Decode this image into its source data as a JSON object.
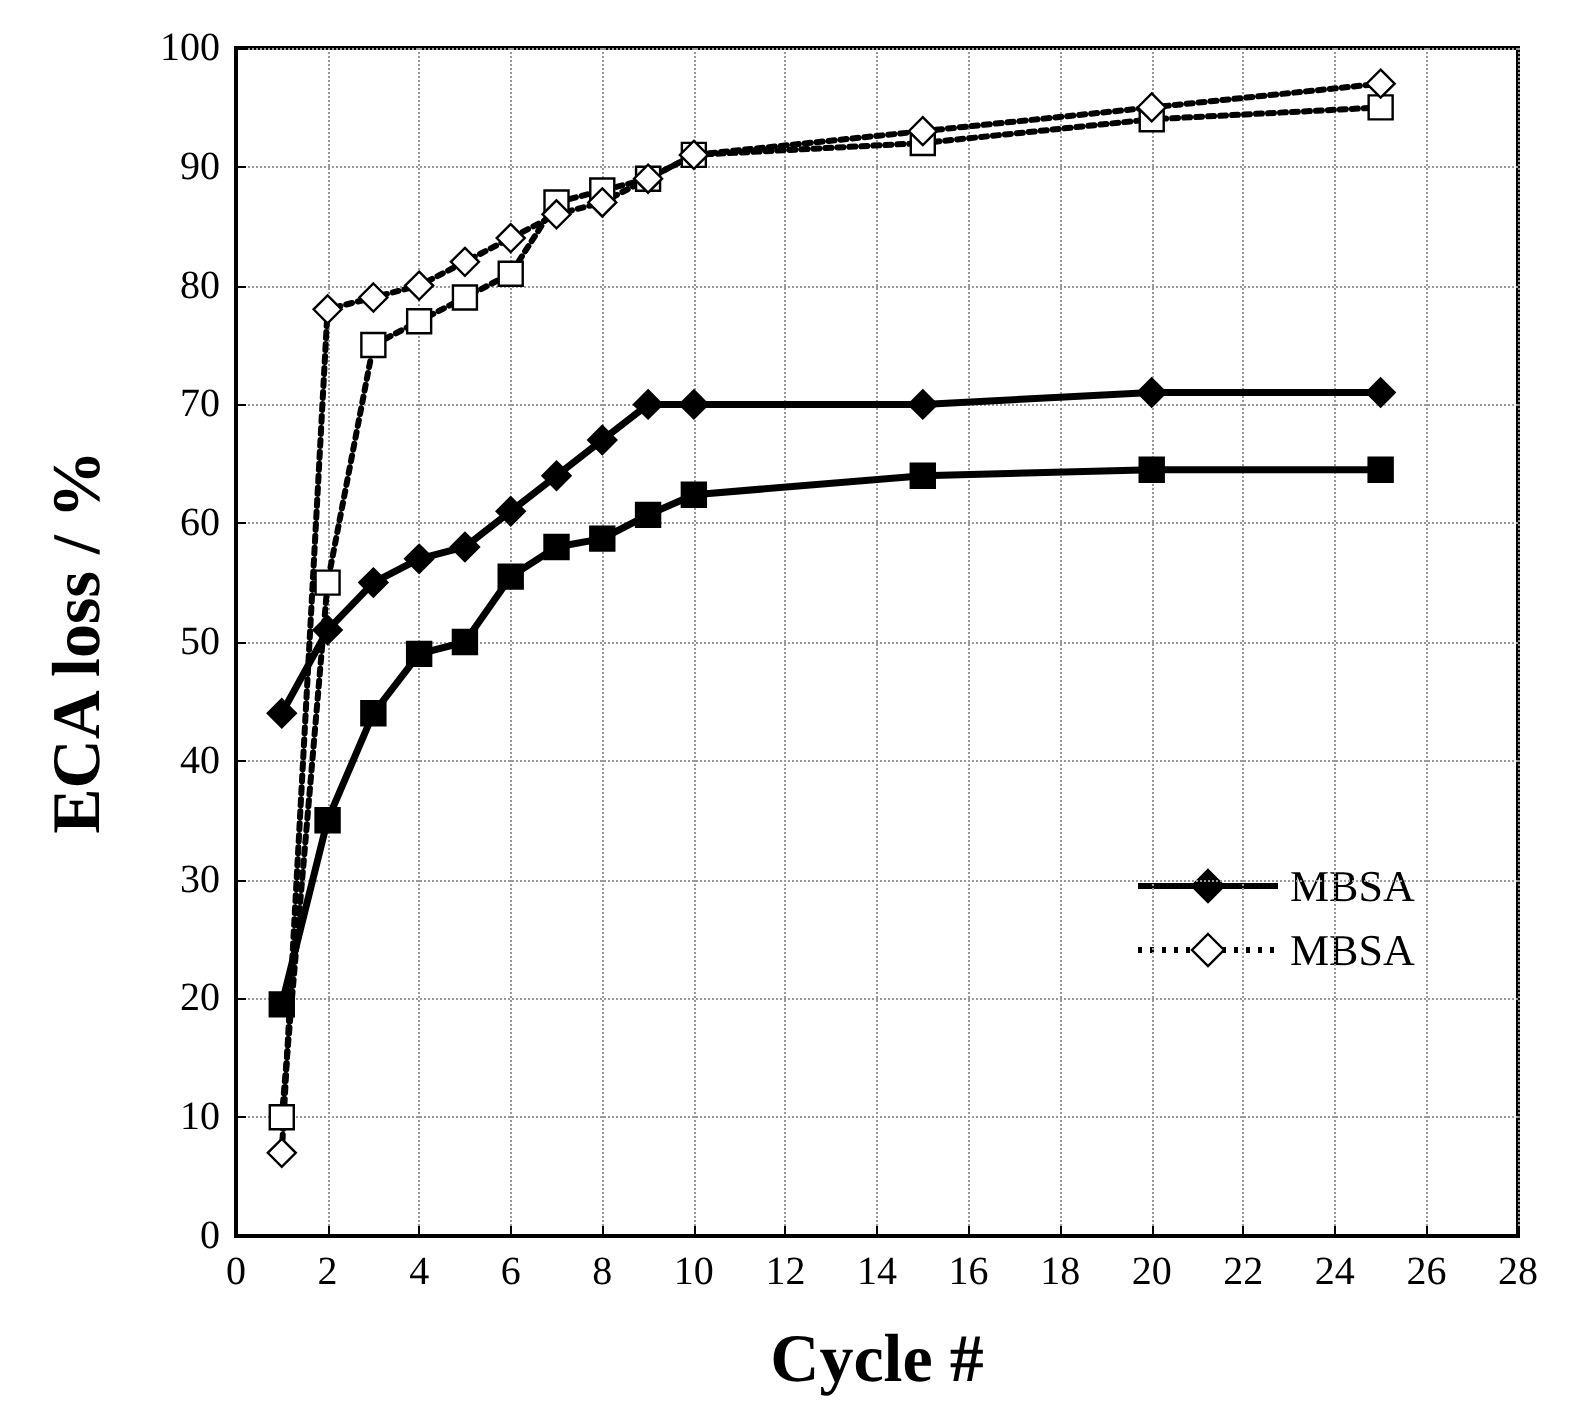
{
  "chart_data": {
    "type": "line",
    "xlabel": "Cycle #",
    "ylabel": "ECA loss / %",
    "x": [
      1,
      2,
      3,
      4,
      5,
      6,
      7,
      8,
      9,
      10,
      15,
      20,
      25
    ],
    "series": [
      {
        "color": "#000000",
        "marker": "square",
        "line_style": "solid",
        "values": [
          19.5,
          35,
          44,
          49,
          50,
          55.5,
          58,
          58.7,
          60.7,
          62.4,
          64,
          64.5,
          64.5
        ]
      },
      {
        "name": "MBSA",
        "color": "#000000",
        "marker": "diamond",
        "line_style": "solid",
        "values": [
          44,
          51,
          55,
          57,
          58,
          61,
          64,
          67,
          70,
          70,
          70,
          71,
          71
        ]
      },
      {
        "color": "#000000",
        "marker": "square",
        "line_style": "dotted",
        "values": [
          10,
          55,
          75,
          77,
          79,
          81,
          87,
          88,
          89,
          91,
          92,
          94,
          95
        ]
      },
      {
        "name": "MBSA",
        "color": "#000000",
        "marker": "diamond",
        "line_style": "dotted",
        "values": [
          7,
          78,
          79,
          80,
          82,
          84,
          86,
          87,
          89,
          91,
          93,
          95,
          97
        ]
      }
    ],
    "xlim": [
      0,
      28
    ],
    "xticks": [
      0,
      2,
      4,
      6,
      8,
      10,
      12,
      14,
      16,
      18,
      20,
      22,
      24,
      26,
      28
    ],
    "ylim": [
      0,
      100
    ],
    "yticks": [
      0,
      10,
      20,
      30,
      40,
      50,
      60,
      70,
      80,
      90,
      100
    ],
    "grid": true,
    "legend": "bottom right"
  }
}
